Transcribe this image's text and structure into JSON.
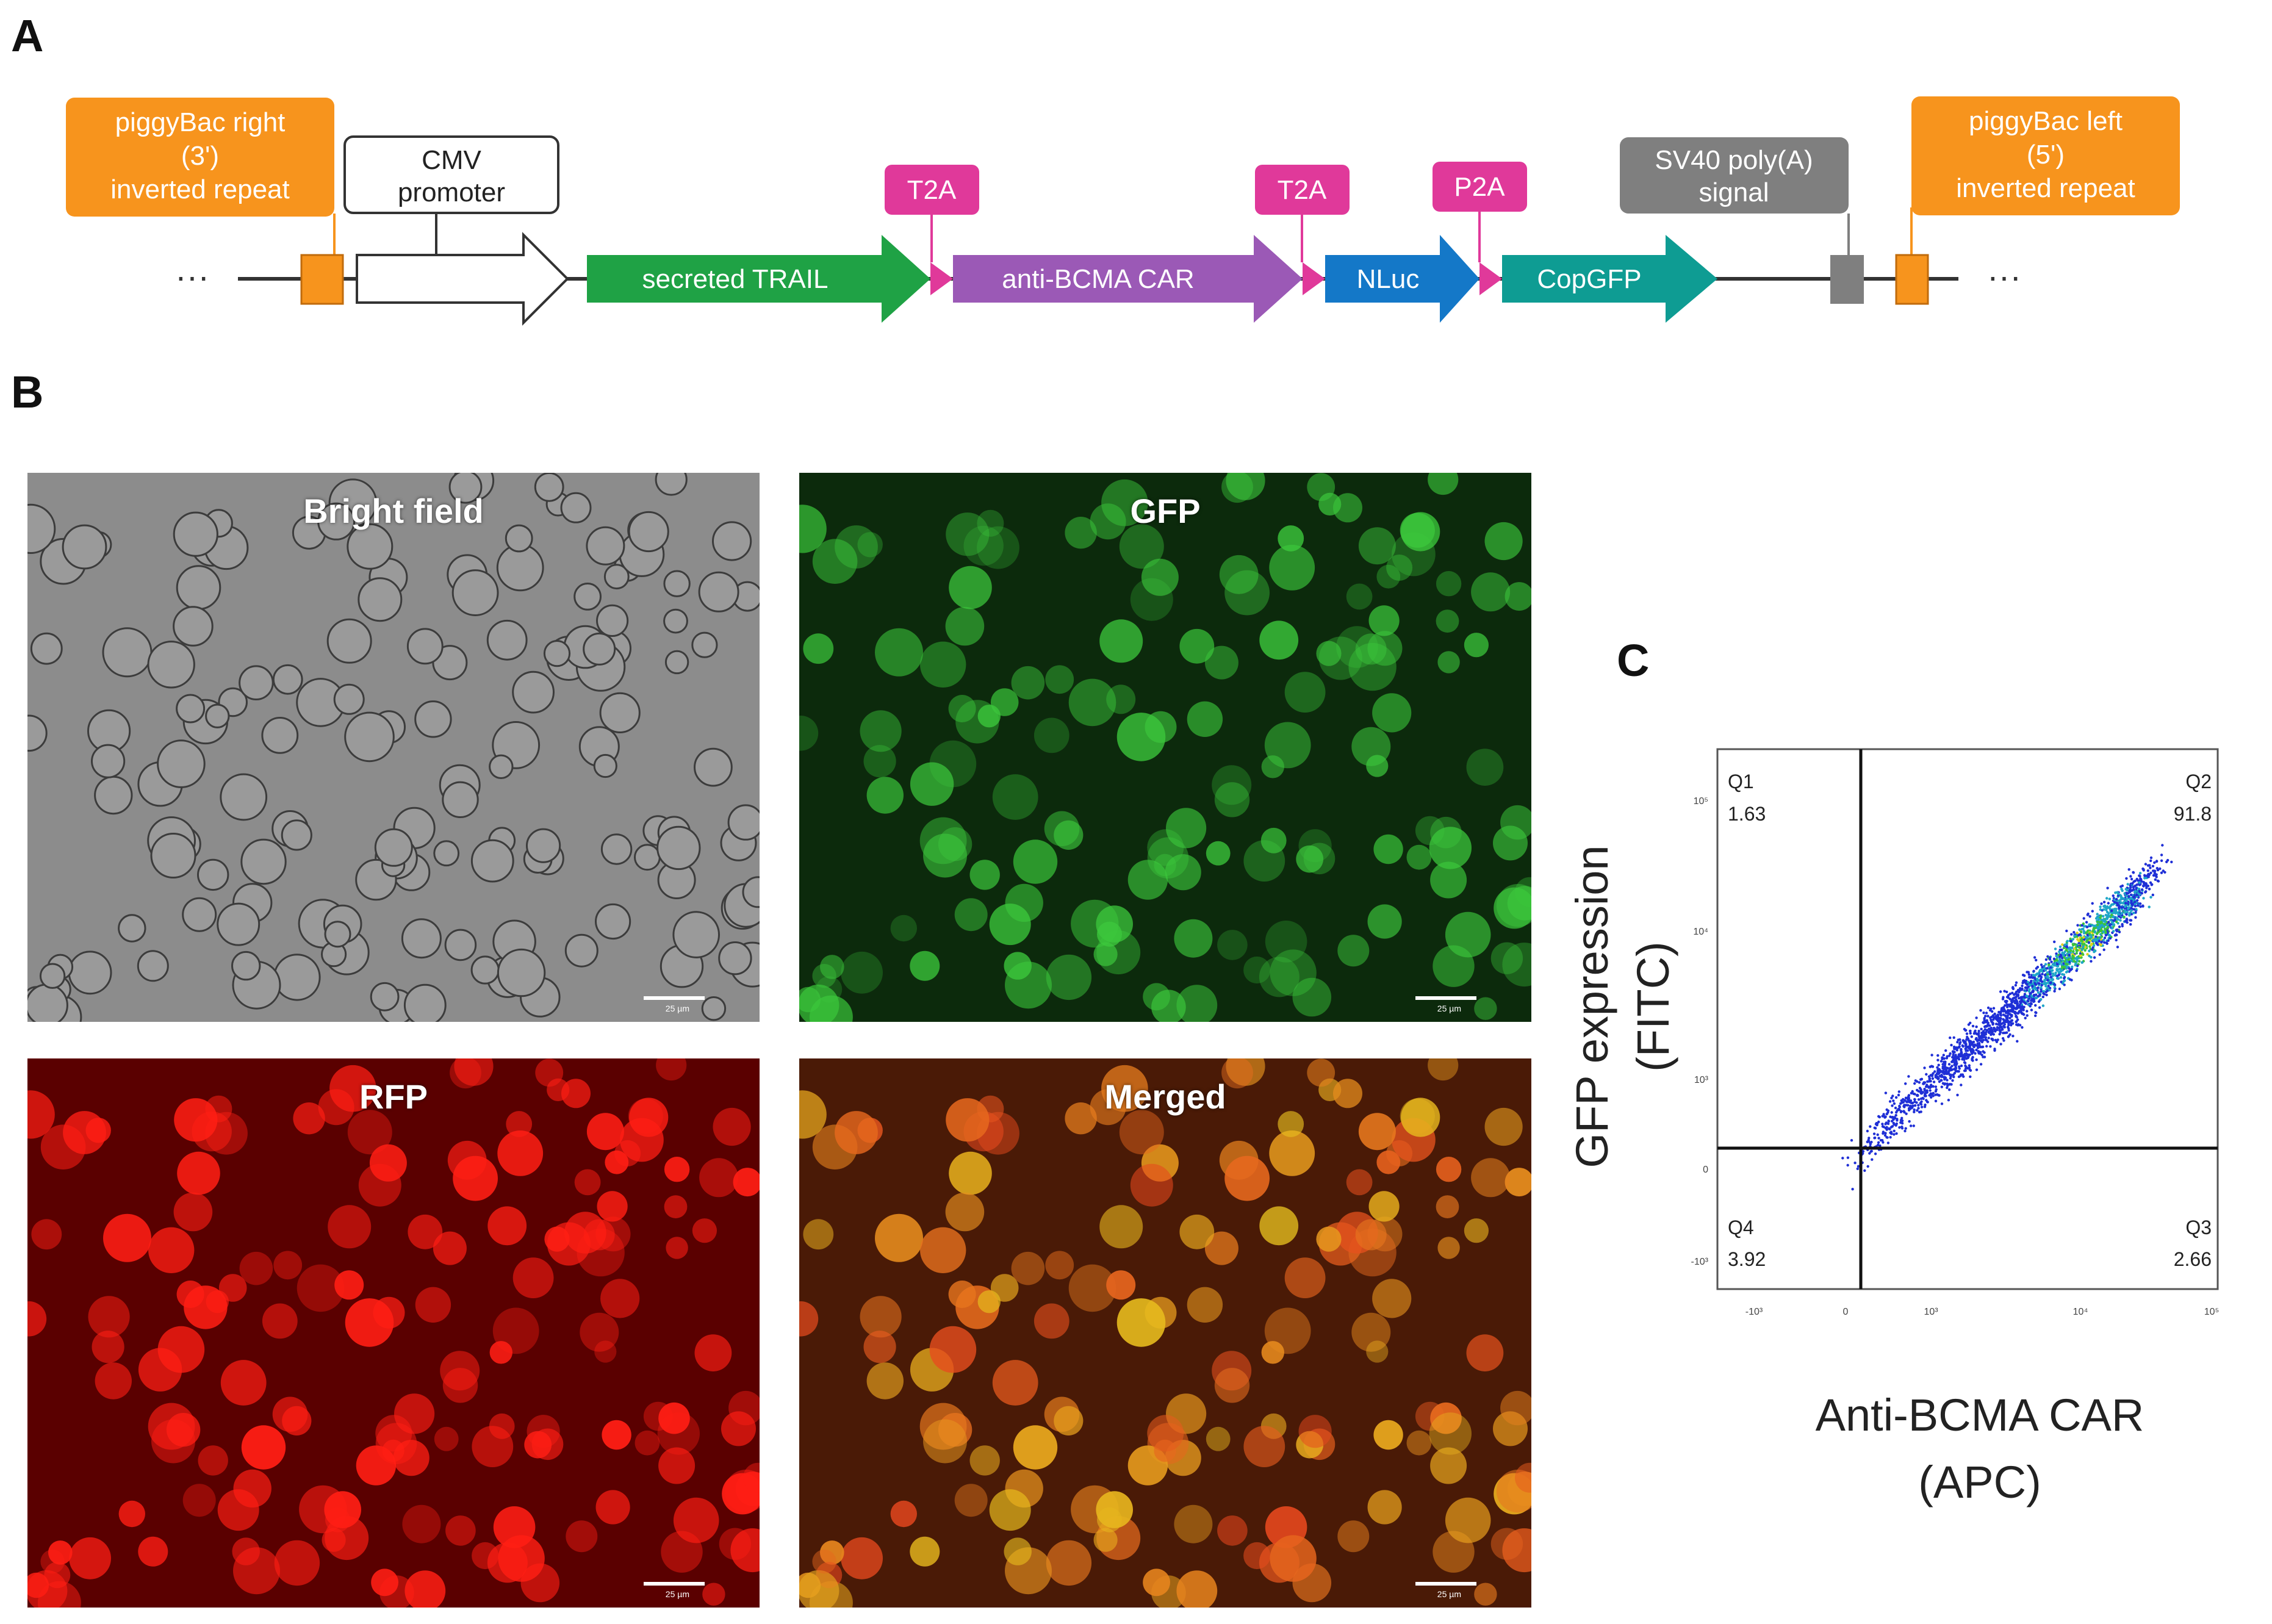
{
  "panels": {
    "a": "A",
    "b": "B",
    "c": "C"
  },
  "construct": {
    "left_dots": "···",
    "right_dots": "···",
    "callouts": {
      "pb_right": [
        "piggyBac right",
        "(3')",
        "inverted repeat"
      ],
      "cmv": [
        "CMV",
        "promoter"
      ],
      "t2a_1": "T2A",
      "t2a_2": "T2A",
      "p2a": "P2A",
      "sv40": [
        "SV40 poly(A)",
        "signal"
      ],
      "pb_left": [
        "piggyBac left",
        "(5')",
        "inverted repeat"
      ]
    },
    "arrows": {
      "trail": "secreted TRAIL",
      "car": "anti-BCMA CAR",
      "nluc": "NLuc",
      "copgfp": "CopGFP"
    },
    "colors": {
      "orange": "#F7941D",
      "green": "#1FA245",
      "purple": "#9B59B6",
      "blue": "#1478C8",
      "teal": "#0E9C93",
      "pink": "#E0399A",
      "gray": "#7F7F7F"
    }
  },
  "micrographs": {
    "bright": {
      "label": "Bright field",
      "scale": "25 µm"
    },
    "gfp": {
      "label": "GFP",
      "scale": "25 µm"
    },
    "rfp": {
      "label": "RFP",
      "scale": "25 µm"
    },
    "merged": {
      "label": "Merged",
      "scale": "25 µm"
    }
  },
  "chart_data": {
    "type": "scatter",
    "xlabel": [
      "Anti-BCMA CAR",
      "(APC)"
    ],
    "ylabel": [
      "GFP expression",
      "(FITC)"
    ],
    "x_ticks": [
      "-10³",
      "0",
      "10³",
      "10⁴",
      "10⁵"
    ],
    "y_ticks": [
      "10⁵",
      "10⁴",
      "10³",
      "0",
      "-10³"
    ],
    "quadrants": [
      {
        "name": "Q1",
        "value": "1.63"
      },
      {
        "name": "Q2",
        "value": "91.8"
      },
      {
        "name": "Q3",
        "value": "2.66"
      },
      {
        "name": "Q4",
        "value": "3.92"
      }
    ],
    "population": "diagonal cloud from about (0,0) to about (10⁵,10⁴·⁵), densest near (10⁴,10³·⁵)"
  }
}
